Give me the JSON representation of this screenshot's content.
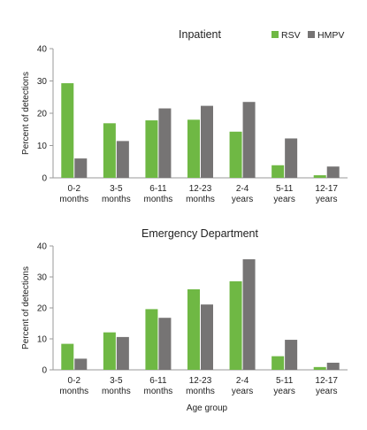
{
  "colors": {
    "RSV": "#6fb844",
    "HMPV": "#767474",
    "axis": "#9a9a9a"
  },
  "legend": [
    {
      "name": "RSV",
      "color": "#6fb844"
    },
    {
      "name": "HMPV",
      "color": "#767474"
    }
  ],
  "shared_xlabel": "Age group",
  "chart_data": [
    {
      "type": "bar",
      "title": "Inpatient",
      "ylabel": "Percent of detections",
      "xlabel": "",
      "ylim": [
        0,
        40
      ],
      "yticks": [
        0,
        10,
        20,
        30,
        40
      ],
      "categories": [
        [
          "0-2",
          "months"
        ],
        [
          "3-5",
          "months"
        ],
        [
          "6-11",
          "months"
        ],
        [
          "12-23",
          "months"
        ],
        [
          "2-4",
          "years"
        ],
        [
          "5-11",
          "years"
        ],
        [
          "12-17",
          "years"
        ]
      ],
      "series": [
        {
          "name": "RSV",
          "values": [
            29.3,
            16.9,
            17.8,
            18.0,
            14.3,
            3.9,
            0.8
          ]
        },
        {
          "name": "HMPV",
          "values": [
            6.0,
            11.4,
            21.5,
            22.3,
            23.5,
            12.2,
            3.5
          ]
        }
      ]
    },
    {
      "type": "bar",
      "title": "Emergency Department",
      "ylabel": "Percent of detections",
      "xlabel": "Age group",
      "ylim": [
        0,
        40
      ],
      "yticks": [
        0,
        10,
        20,
        30,
        40
      ],
      "categories": [
        [
          "0-2",
          "months"
        ],
        [
          "3-5",
          "months"
        ],
        [
          "6-11",
          "months"
        ],
        [
          "12-23",
          "months"
        ],
        [
          "2-4",
          "years"
        ],
        [
          "5-11",
          "years"
        ],
        [
          "12-17",
          "years"
        ]
      ],
      "series": [
        {
          "name": "RSV",
          "values": [
            8.4,
            12.1,
            19.6,
            26.0,
            28.6,
            4.4,
            0.9
          ]
        },
        {
          "name": "HMPV",
          "values": [
            3.6,
            10.6,
            16.8,
            21.1,
            35.7,
            9.7,
            2.3
          ]
        }
      ]
    }
  ]
}
